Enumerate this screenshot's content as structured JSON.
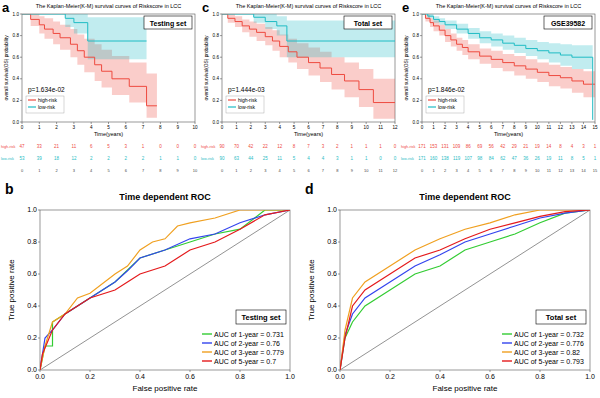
{
  "chart_data": [
    {
      "type": "step",
      "panel": "a",
      "title": "The Kaplan-Meier(K-M) survival curves of Riskscore in LCC",
      "annotations": [
        "Testing set",
        "p=1.634e-02"
      ],
      "x_label": "Time(years)",
      "y_label": "overall survival(OS) probability",
      "xlim": [
        0,
        10
      ],
      "xticks": [
        0,
        1,
        2,
        3,
        4,
        5,
        6,
        7,
        8,
        9,
        10
      ],
      "ylim": [
        0,
        1
      ],
      "yticks": [
        {
          "value": 0,
          "label": "0.0"
        },
        0.2,
        0.4,
        0.6,
        0.8,
        {
          "value": 1,
          "label": "1.0"
        }
      ],
      "grid": false,
      "legend": "lower left",
      "series": [
        {
          "name": "high-risk",
          "color": "#ee4a3f",
          "x": [
            0,
            0.5,
            1,
            1.3,
            1.8,
            2.2,
            2.8,
            3.2,
            3.6,
            4.2,
            4.6,
            5.2,
            6.2,
            7.2,
            7.8
          ],
          "values": [
            1,
            0.95,
            0.9,
            0.86,
            0.82,
            0.78,
            0.72,
            0.66,
            0.6,
            0.53,
            0.47,
            0.4,
            0.33,
            0.15,
            0.15
          ],
          "lower": [
            1,
            0.89,
            0.82,
            0.77,
            0.72,
            0.67,
            0.6,
            0.53,
            0.46,
            0.38,
            0.32,
            0.25,
            0.18,
            0.04,
            0.04
          ],
          "upper": [
            1,
            1,
            0.98,
            0.96,
            0.93,
            0.9,
            0.86,
            0.81,
            0.77,
            0.72,
            0.67,
            0.61,
            0.55,
            0.45,
            0.45
          ]
        },
        {
          "name": "low-risk",
          "color": "#1fbcc4",
          "x": [
            0,
            2.5,
            3,
            3.8,
            7.2
          ],
          "values": [
            1,
            0.96,
            0.92,
            0.75,
            0.75
          ],
          "lower": [
            1,
            0.88,
            0.82,
            0.58,
            0.58
          ],
          "upper": [
            1,
            1,
            1,
            0.97,
            0.97
          ]
        }
      ],
      "risk_table": {
        "x": [
          0,
          1,
          2,
          3,
          4,
          5,
          6,
          7,
          8,
          9,
          10
        ],
        "rows": [
          {
            "name": "high-risk",
            "values": [
              47,
              33,
              21,
              11,
              6,
              5,
              3,
              1,
              0,
              0,
              0
            ]
          },
          {
            "name": "low-risk",
            "values": [
              53,
              39,
              18,
              12,
              2,
              2,
              2,
              2,
              1,
              1,
              0
            ]
          }
        ]
      }
    },
    {
      "type": "line",
      "panel": "b",
      "title": "Time dependent ROC",
      "annotations": [
        "Testing set"
      ],
      "x_label": "False positive rate",
      "y_label": "True positive rate",
      "xlim": [
        0,
        1
      ],
      "xticks": [
        {
          "value": 0,
          "label": "0.0"
        },
        0.2,
        0.4,
        0.6,
        0.8,
        {
          "value": 1,
          "label": "1.0"
        }
      ],
      "ylim": [
        0,
        1
      ],
      "yticks": [
        {
          "value": 0,
          "label": "0.0"
        },
        0.2,
        0.4,
        0.6,
        0.8,
        {
          "value": 1,
          "label": "1.0"
        }
      ],
      "grid": false,
      "legend": "lower right",
      "series": [
        {
          "name": "AUC of 1-year = 0.731",
          "color": "#33cc33",
          "x": [
            0,
            0.02,
            0.05,
            0.05,
            0.1,
            0.2,
            0.25,
            0.3,
            0.4,
            0.5,
            0.6,
            0.7,
            0.8,
            0.9,
            1
          ],
          "values": [
            0,
            0.15,
            0.15,
            0.3,
            0.35,
            0.45,
            0.5,
            0.55,
            0.7,
            0.75,
            0.8,
            0.85,
            0.88,
            1,
            1
          ]
        },
        {
          "name": "AUC of 2-year = 0.76",
          "color": "#3344ee",
          "x": [
            0,
            0.02,
            0.05,
            0.1,
            0.15,
            0.2,
            0.3,
            0.35,
            0.4,
            0.5,
            0.6,
            0.7,
            0.8,
            0.9,
            1
          ],
          "values": [
            0,
            0.2,
            0.25,
            0.35,
            0.4,
            0.45,
            0.55,
            0.62,
            0.7,
            0.75,
            0.82,
            0.85,
            0.92,
            0.97,
            1
          ]
        },
        {
          "name": "AUC of 3-year = 0.779",
          "color": "#f0a020",
          "x": [
            0,
            0.02,
            0.05,
            0.1,
            0.15,
            0.2,
            0.3,
            0.35,
            0.4,
            0.45,
            0.5,
            0.55,
            0.6,
            0.7,
            0.8,
            1
          ],
          "values": [
            0,
            0.15,
            0.3,
            0.35,
            0.45,
            0.48,
            0.6,
            0.65,
            0.75,
            0.8,
            0.82,
            0.9,
            0.92,
            0.95,
            1,
            1
          ]
        },
        {
          "name": "AUC of 5-year = 0.7",
          "color": "#e41a1c",
          "x": [
            0,
            0.01,
            0.05,
            0.1,
            0.2,
            0.3,
            0.35,
            0.4,
            0.5,
            0.6,
            0.7,
            0.8,
            0.9,
            1
          ],
          "values": [
            0,
            0.1,
            0.25,
            0.35,
            0.45,
            0.5,
            0.55,
            0.6,
            0.65,
            0.75,
            0.8,
            0.88,
            0.97,
            1
          ]
        }
      ]
    },
    {
      "type": "step",
      "panel": "c",
      "title": "The Kaplan-Meier(K-M) survival curves of Riskscore in LCC",
      "annotations": [
        "Total set",
        "p=1.444e-03"
      ],
      "x_label": "Time(years)",
      "y_label": "overall survival(OS) probability",
      "xlim": [
        0,
        12
      ],
      "xticks": [
        0,
        1,
        2,
        3,
        4,
        5,
        6,
        7,
        8,
        9,
        10,
        11,
        12
      ],
      "ylim": [
        0,
        1
      ],
      "yticks": [
        {
          "value": 0,
          "label": "0.0"
        },
        0.2,
        0.4,
        0.6,
        0.8,
        {
          "value": 1,
          "label": "1.0"
        }
      ],
      "grid": false,
      "legend": "lower left",
      "series": [
        {
          "name": "high-risk",
          "color": "#ee4a3f",
          "x": [
            0,
            0.4,
            0.9,
            1.4,
            1.9,
            2.4,
            3,
            3.5,
            4,
            4.6,
            5.2,
            6,
            6.8,
            7.6,
            8.5,
            9.5,
            10.5,
            12
          ],
          "values": [
            1,
            0.96,
            0.93,
            0.89,
            0.86,
            0.83,
            0.79,
            0.75,
            0.7,
            0.65,
            0.6,
            0.55,
            0.5,
            0.44,
            0.38,
            0.3,
            0.18,
            0.18
          ],
          "lower": [
            1,
            0.92,
            0.88,
            0.83,
            0.79,
            0.75,
            0.71,
            0.66,
            0.6,
            0.55,
            0.49,
            0.43,
            0.37,
            0.3,
            0.23,
            0.14,
            0.03,
            0.03
          ],
          "upper": [
            1,
            1,
            0.98,
            0.95,
            0.93,
            0.91,
            0.88,
            0.85,
            0.81,
            0.77,
            0.73,
            0.69,
            0.65,
            0.6,
            0.55,
            0.49,
            0.4,
            0.4
          ]
        },
        {
          "name": "low-risk",
          "color": "#1fbcc4",
          "x": [
            0,
            2.2,
            3,
            3.8,
            4.5,
            12
          ],
          "values": [
            1,
            0.97,
            0.93,
            0.89,
            0.75,
            0.75
          ],
          "lower": [
            1,
            0.92,
            0.86,
            0.8,
            0.6,
            0.6
          ],
          "upper": [
            1,
            1,
            1,
            0.98,
            0.94,
            0.94
          ]
        }
      ],
      "risk_table": {
        "x": [
          0,
          1,
          2,
          3,
          4,
          5,
          6,
          7,
          8,
          9,
          10,
          11,
          12
        ],
        "rows": [
          {
            "name": "high-risk",
            "values": [
              90,
              70,
              42,
              22,
              12,
              8,
              7,
              3,
              2,
              1,
              1,
              1,
              0
            ]
          },
          {
            "name": "low-risk",
            "values": [
              90,
              63,
              44,
              25,
              11,
              5,
              4,
              4,
              3,
              1,
              1,
              0,
              0
            ]
          }
        ]
      }
    },
    {
      "type": "line",
      "panel": "d",
      "title": "Time dependent ROC",
      "annotations": [
        "Total set"
      ],
      "x_label": "False positive rate",
      "y_label": "True positive rate",
      "xlim": [
        0,
        1
      ],
      "xticks": [
        {
          "value": 0,
          "label": "0.0"
        },
        0.2,
        0.4,
        0.6,
        0.8,
        {
          "value": 1,
          "label": "1.0"
        }
      ],
      "ylim": [
        0,
        1
      ],
      "yticks": [
        {
          "value": 0,
          "label": "0.0"
        },
        0.2,
        0.4,
        0.6,
        0.8,
        {
          "value": 1,
          "label": "1.0"
        }
      ],
      "grid": false,
      "legend": "lower right",
      "series": [
        {
          "name": "AUC of 1-year = 0.732",
          "color": "#33cc33",
          "x": [
            0,
            0.02,
            0.05,
            0.1,
            0.2,
            0.3,
            0.4,
            0.5,
            0.6,
            0.7,
            0.8,
            0.9,
            1
          ],
          "values": [
            0,
            0.2,
            0.3,
            0.4,
            0.5,
            0.6,
            0.65,
            0.75,
            0.8,
            0.85,
            0.92,
            0.98,
            1
          ]
        },
        {
          "name": "AUC of 2-year = 0.776",
          "color": "#3344ee",
          "x": [
            0,
            0.02,
            0.05,
            0.1,
            0.2,
            0.3,
            0.4,
            0.5,
            0.6,
            0.7,
            0.8,
            0.9,
            1
          ],
          "values": [
            0,
            0.22,
            0.35,
            0.45,
            0.55,
            0.65,
            0.72,
            0.8,
            0.85,
            0.9,
            0.95,
            0.98,
            1
          ]
        },
        {
          "name": "AUC of 3-year = 0.82",
          "color": "#f0a020",
          "x": [
            0,
            0.02,
            0.05,
            0.1,
            0.2,
            0.3,
            0.4,
            0.5,
            0.6,
            0.7,
            0.8,
            1
          ],
          "values": [
            0,
            0.25,
            0.45,
            0.55,
            0.65,
            0.75,
            0.82,
            0.88,
            0.92,
            0.97,
            1,
            1
          ]
        },
        {
          "name": "AUC of 5-year = 0.793",
          "color": "#e41a1c",
          "x": [
            0,
            0.02,
            0.05,
            0.1,
            0.2,
            0.3,
            0.4,
            0.5,
            0.6,
            0.7,
            0.8,
            0.9,
            1
          ],
          "values": [
            0,
            0.2,
            0.4,
            0.5,
            0.6,
            0.7,
            0.75,
            0.82,
            0.88,
            0.92,
            0.96,
            0.99,
            1
          ]
        }
      ]
    },
    {
      "type": "step",
      "panel": "e",
      "title": "The Kaplan-Meier(K-M) survival curves of Riskscore in LCC",
      "annotations": [
        "GSE39582",
        "p=1.846e-02"
      ],
      "x_label": "Time(years)",
      "y_label": "overall survival(OS) probability",
      "xlim": [
        0,
        15
      ],
      "xticks": [
        0,
        1,
        2,
        3,
        4,
        5,
        6,
        7,
        8,
        9,
        10,
        11,
        12,
        13,
        14,
        15
      ],
      "ylim": [
        0,
        1
      ],
      "yticks": [
        {
          "value": 0,
          "label": "0.0"
        },
        0.2,
        0.4,
        0.6,
        0.8,
        {
          "value": 1,
          "label": "1.0"
        }
      ],
      "grid": false,
      "legend": "lower left",
      "series": [
        {
          "name": "high-risk",
          "color": "#ee4a3f",
          "x": [
            0,
            0.3,
            0.7,
            1,
            1.5,
            2,
            2.5,
            3,
            3.5,
            4,
            5,
            6,
            7,
            8,
            9,
            10,
            11,
            12,
            13,
            14,
            15
          ],
          "values": [
            1,
            0.96,
            0.92,
            0.89,
            0.85,
            0.8,
            0.76,
            0.72,
            0.69,
            0.65,
            0.61,
            0.58,
            0.55,
            0.52,
            0.49,
            0.46,
            0.43,
            0.41,
            0.38,
            0.35,
            0.35
          ],
          "lower": [
            1,
            0.93,
            0.88,
            0.84,
            0.8,
            0.74,
            0.7,
            0.66,
            0.62,
            0.58,
            0.54,
            0.5,
            0.47,
            0.43,
            0.4,
            0.37,
            0.33,
            0.31,
            0.27,
            0.23,
            0.23
          ],
          "upper": [
            1,
            0.99,
            0.96,
            0.94,
            0.9,
            0.86,
            0.82,
            0.78,
            0.76,
            0.72,
            0.68,
            0.66,
            0.63,
            0.61,
            0.58,
            0.55,
            0.53,
            0.51,
            0.49,
            0.47,
            0.47
          ]
        },
        {
          "name": "low-risk",
          "color": "#1fbcc4",
          "x": [
            0,
            0.5,
            1,
            1.5,
            2,
            3,
            4,
            5,
            6,
            7,
            8,
            9,
            10,
            11,
            12,
            13,
            14.8
          ],
          "values": [
            1,
            0.98,
            0.95,
            0.93,
            0.9,
            0.86,
            0.82,
            0.78,
            0.76,
            0.73,
            0.71,
            0.68,
            0.66,
            0.64,
            0.62,
            0.6,
            0.02
          ],
          "lower": [
            1,
            0.96,
            0.92,
            0.9,
            0.86,
            0.82,
            0.77,
            0.73,
            0.7,
            0.67,
            0.64,
            0.61,
            0.58,
            0.55,
            0.52,
            0.49,
            0
          ],
          "upper": [
            1,
            1,
            0.98,
            0.96,
            0.94,
            0.91,
            0.87,
            0.84,
            0.82,
            0.8,
            0.78,
            0.76,
            0.74,
            0.73,
            0.72,
            0.71,
            0.71
          ]
        }
      ],
      "risk_table": {
        "x": [
          0,
          1,
          2,
          3,
          4,
          5,
          6,
          7,
          8,
          9,
          10,
          11,
          12,
          13,
          14,
          15
        ],
        "rows": [
          {
            "name": "high-risk",
            "values": [
              171,
              153,
              131,
              109,
              86,
              69,
              56,
              42,
              29,
              21,
              19,
              14,
              8,
              4,
              3,
              1
            ]
          },
          {
            "name": "low-risk",
            "values": [
              171,
              160,
              138,
              119,
              107,
              98,
              84,
              62,
              47,
              36,
              26,
              19,
              11,
              8,
              5,
              1
            ]
          }
        ]
      }
    }
  ]
}
